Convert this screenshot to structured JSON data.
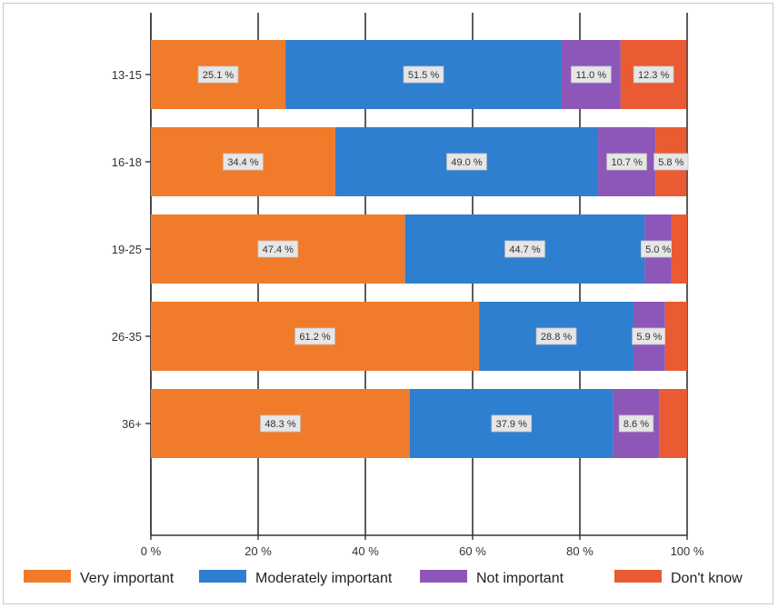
{
  "chart_data": {
    "type": "bar",
    "orientation": "horizontal",
    "stacked": true,
    "title": "",
    "xlabel": "",
    "ylabel": "",
    "xlim": [
      0,
      100
    ],
    "x_ticks": [
      "0 %",
      "20 %",
      "40 %",
      "60 %",
      "80 %",
      "100 %"
    ],
    "grid": true,
    "legend_position": "bottom",
    "categories": [
      "13-15",
      "16-18",
      "19-25",
      "26-35",
      "36+"
    ],
    "series": [
      {
        "name": "Very important",
        "color": "#f07c2b",
        "values": [
          25.1,
          34.4,
          47.4,
          61.2,
          48.3
        ],
        "labels": [
          "25.1 %",
          "34.4 %",
          "47.4 %",
          "61.2 %",
          "48.3 %"
        ]
      },
      {
        "name": "Moderately important",
        "color": "#2f7fd0",
        "values": [
          51.5,
          49.0,
          44.7,
          28.8,
          37.9
        ],
        "labels": [
          "51.5 %",
          "49.0 %",
          "44.7 %",
          "28.8 %",
          "37.9 %"
        ]
      },
      {
        "name": "Not important",
        "color": "#8c57b9",
        "values": [
          11.0,
          10.7,
          5.0,
          5.9,
          8.6
        ],
        "labels": [
          "11.0 %",
          "10.7 %",
          "5.0 %",
          "5.9 %",
          "8.6 %"
        ]
      },
      {
        "name": "Don't know",
        "color": "#ea5a33",
        "values": [
          12.3,
          5.8,
          2.9,
          4.1,
          5.2
        ],
        "labels": [
          "12.3 %",
          "5.8 %",
          "",
          "",
          ""
        ]
      }
    ]
  }
}
